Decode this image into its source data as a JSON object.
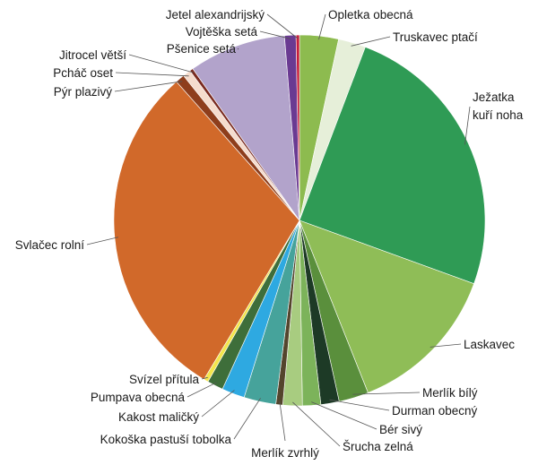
{
  "chart_data": {
    "type": "pie",
    "start_angle_deg": 0,
    "direction": "clockwise",
    "legend": "none",
    "series": [
      {
        "label": "Opletka obecná",
        "value": 3.4,
        "color": "#8dbb4f"
      },
      {
        "label": "Truskavec ptačí",
        "value": 2.4,
        "color": "#e6efd9"
      },
      {
        "label": "Ježatka kuří noha",
        "value": 24.9,
        "color": "#2f9b55"
      },
      {
        "label": "Laskavec",
        "value": 13.5,
        "color": "#8fbd57"
      },
      {
        "label": "Merlík bílý",
        "value": 2.6,
        "color": "#5a8f3c"
      },
      {
        "label": "Durman obecný",
        "value": 1.6,
        "color": "#1d3a26"
      },
      {
        "label": "Bér sivý",
        "value": 1.6,
        "color": "#7cb35a"
      },
      {
        "label": "Šrucha zelná",
        "value": 1.7,
        "color": "#a8cc80"
      },
      {
        "label": "Merlík zvrhlý",
        "value": 0.6,
        "color": "#54452d"
      },
      {
        "label": "Kokoška pastuší tobolka",
        "value": 2.8,
        "color": "#46a39b"
      },
      {
        "label": "Kakost maličký",
        "value": 2.0,
        "color": "#2ea9e1"
      },
      {
        "label": "Pumpava obecná",
        "value": 1.4,
        "color": "#3e6e3a"
      },
      {
        "label": "Svízel přítula",
        "value": 0.4,
        "color": "#f3e64c"
      },
      {
        "label": "Svlačec rolní",
        "value": 30.0,
        "color": "#d1692a"
      },
      {
        "label": "Pýr plazivý",
        "value": 0.8,
        "color": "#8e3e1c"
      },
      {
        "label": "Pcháč oset",
        "value": 0.7,
        "color": "#f5dccd"
      },
      {
        "label": "Jitrocel větší",
        "value": 0.3,
        "color": "#7a2a1f"
      },
      {
        "label": "Pšenice setá",
        "value": 8.5,
        "color": "#b2a3cb"
      },
      {
        "label": "Vojtěška setá",
        "value": 1.0,
        "color": "#6a3a92"
      },
      {
        "label": "Jetel alexandrijský",
        "value": 0.3,
        "color": "#c81e3c"
      }
    ],
    "label_placements": [
      {
        "lx": 366,
        "ly": 16,
        "anchor": "start",
        "lines": 1
      },
      {
        "lx": 438,
        "ly": 41,
        "anchor": "start",
        "lines": 1
      },
      {
        "lx": 527,
        "ly": 119,
        "anchor": "start",
        "lines": 2
      },
      {
        "lx": 517,
        "ly": 384,
        "anchor": "start",
        "lines": 1
      },
      {
        "lx": 471,
        "ly": 438,
        "anchor": "start",
        "lines": 1
      },
      {
        "lx": 437,
        "ly": 458,
        "anchor": "start",
        "lines": 1
      },
      {
        "lx": 423,
        "ly": 479,
        "anchor": "start",
        "lines": 1
      },
      {
        "lx": 382,
        "ly": 498,
        "anchor": "start",
        "lines": 1
      },
      {
        "lx": 318,
        "ly": 505,
        "anchor": "middle",
        "lines": 1
      },
      {
        "lx": 258,
        "ly": 490,
        "anchor": "end",
        "lines": 1
      },
      {
        "lx": 222,
        "ly": 465,
        "anchor": "end",
        "lines": 1
      },
      {
        "lx": 206,
        "ly": 443,
        "anchor": "end",
        "lines": 1
      },
      {
        "lx": 222,
        "ly": 423,
        "anchor": "end",
        "lines": 1
      },
      {
        "lx": 94,
        "ly": 273,
        "anchor": "end",
        "lines": 1
      },
      {
        "lx": 125,
        "ly": 102,
        "anchor": "end",
        "lines": 1
      },
      {
        "lx": 126,
        "ly": 81,
        "anchor": "end",
        "lines": 1
      },
      {
        "lx": 141,
        "ly": 61,
        "anchor": "end",
        "lines": 1
      },
      {
        "lx": 263,
        "ly": 54,
        "anchor": "end",
        "lines": 1
      },
      {
        "lx": 287,
        "ly": 35,
        "anchor": "end",
        "lines": 1
      },
      {
        "lx": 295,
        "ly": 16,
        "anchor": "end",
        "lines": 1
      }
    ]
  }
}
